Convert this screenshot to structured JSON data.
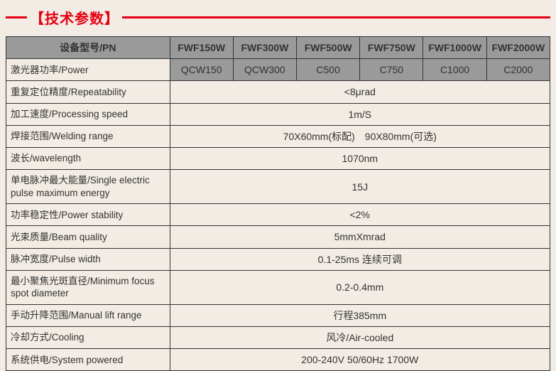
{
  "header": {
    "title": "【技术参数】"
  },
  "table": {
    "pn_label": "设备型号/PN",
    "models": [
      "FWF150W",
      "FWF300W",
      "FWF500W",
      "FWF750W",
      "FWF1000W",
      "FWF2000W"
    ],
    "power_label": "激光器功率/Power",
    "powers": [
      "QCW150",
      "QCW300",
      "C500",
      "C750",
      "C1000",
      "C2000"
    ],
    "rows": [
      {
        "label": "重复定位精度/Repeatability",
        "value": "<8μrad"
      },
      {
        "label": "加工速度/Processing speed",
        "value": "1m/S"
      },
      {
        "label": "焊接范围/Welding range",
        "value": "70X60mm(标配)　90X80mm(可选)"
      },
      {
        "label": "波长/wavelength",
        "value": "1070nm"
      },
      {
        "label": "单电脉冲最大能量/Single electric pulse maximum energy",
        "value": "15J"
      },
      {
        "label": "功率稳定性/Power stability",
        "value": "<2%"
      },
      {
        "label": "光束质量/Beam quality",
        "value": "5mmXmrad"
      },
      {
        "label": "脉冲宽度/Pulse width",
        "value": "0.1-25ms 连续可调"
      },
      {
        "label": "最小聚焦光斑直径/Minimum focus spot diameter",
        "value": "0.2-0.4mm"
      },
      {
        "label": "手动升降范围/Manual lift range",
        "value": "行程385mm"
      },
      {
        "label": "冷却方式/Cooling",
        "value": "风冷/Air-cooled"
      },
      {
        "label": "系统供电/System powered",
        "value": "200-240V 50/60Hz 1700W"
      }
    ]
  },
  "style": {
    "accent_color": "#e60012",
    "header_bg": "#9a9a9a",
    "page_bg": "#f2ece4",
    "border_color": "#333333",
    "body_fontsize": 14,
    "title_fontsize": 20
  }
}
